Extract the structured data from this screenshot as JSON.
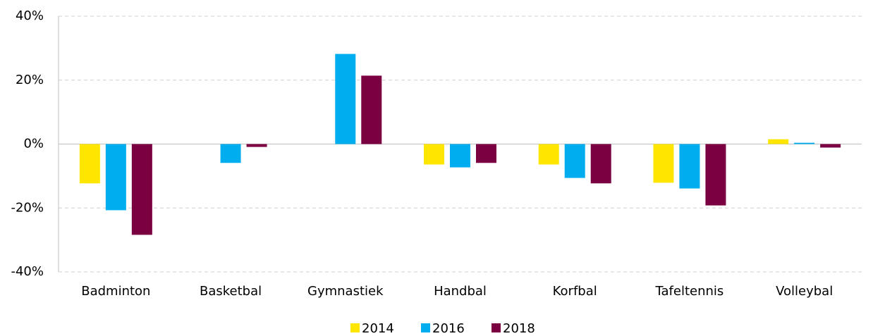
{
  "chart_data": {
    "type": "bar",
    "categories": [
      "Badminton",
      "Basketbal",
      "Gymnastiek",
      "Handbal",
      "Korfbal",
      "Tafeltennis",
      "Volleybal"
    ],
    "series": [
      {
        "name": "2014",
        "color": "#ffe600",
        "values": [
          -12.3,
          null,
          null,
          -6.4,
          -6.4,
          -12.1,
          1.5
        ]
      },
      {
        "name": "2016",
        "color": "#00aeef",
        "values": [
          -20.7,
          -5.9,
          28.2,
          -7.3,
          -10.6,
          -13.9,
          0.4
        ]
      },
      {
        "name": "2018",
        "color": "#7b0041",
        "values": [
          -28.4,
          -0.9,
          21.4,
          -5.9,
          -12.3,
          -19.2,
          -1.1
        ]
      }
    ],
    "ylim": [
      -40,
      40
    ],
    "yticks": [
      {
        "value": -40,
        "label": "-40%"
      },
      {
        "value": -20,
        "label": "-20%"
      },
      {
        "value": 0,
        "label": "0%"
      },
      {
        "value": 20,
        "label": "20%"
      },
      {
        "value": 40,
        "label": "40%"
      }
    ],
    "grid": true,
    "legend": "bottom"
  }
}
